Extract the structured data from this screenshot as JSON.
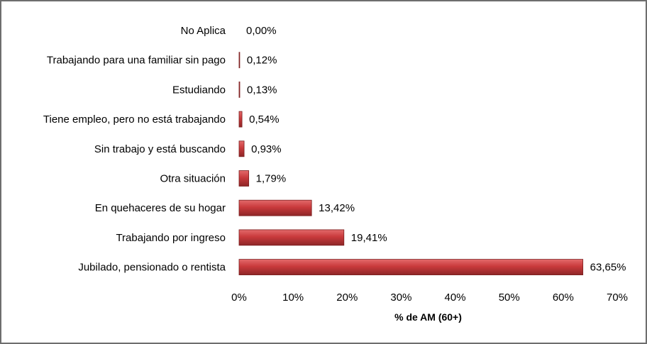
{
  "chart_data": {
    "type": "bar",
    "orientation": "horizontal",
    "categories": [
      "No Aplica",
      "Trabajando para una familiar sin pago",
      "Estudiando",
      "Tiene empleo, pero no está trabajando",
      "Sin trabajo y está buscando",
      "Otra situación",
      "En quehaceres de su hogar",
      "Trabajando por ingreso",
      "Jubilado, pensionado o rentista"
    ],
    "values": [
      0.0,
      0.12,
      0.13,
      0.54,
      0.93,
      1.79,
      13.42,
      19.41,
      63.65
    ],
    "value_labels": [
      "0,00%",
      "0,12%",
      "0,13%",
      "0,54%",
      "0,93%",
      "1,79%",
      "13,42%",
      "19,41%",
      "63,65%"
    ],
    "xlim": [
      0,
      70
    ],
    "x_ticks": [
      0,
      10,
      20,
      30,
      40,
      50,
      60,
      70
    ],
    "x_tick_labels": [
      "0%",
      "10%",
      "20%",
      "30%",
      "40%",
      "50%",
      "60%",
      "70%"
    ],
    "xlabel": "% de AM (60+)",
    "ylabel": "",
    "title": "",
    "grid": false,
    "legend": "none",
    "bar_color": "#c0393b",
    "bar_edge_color": "#7a1e1f"
  }
}
